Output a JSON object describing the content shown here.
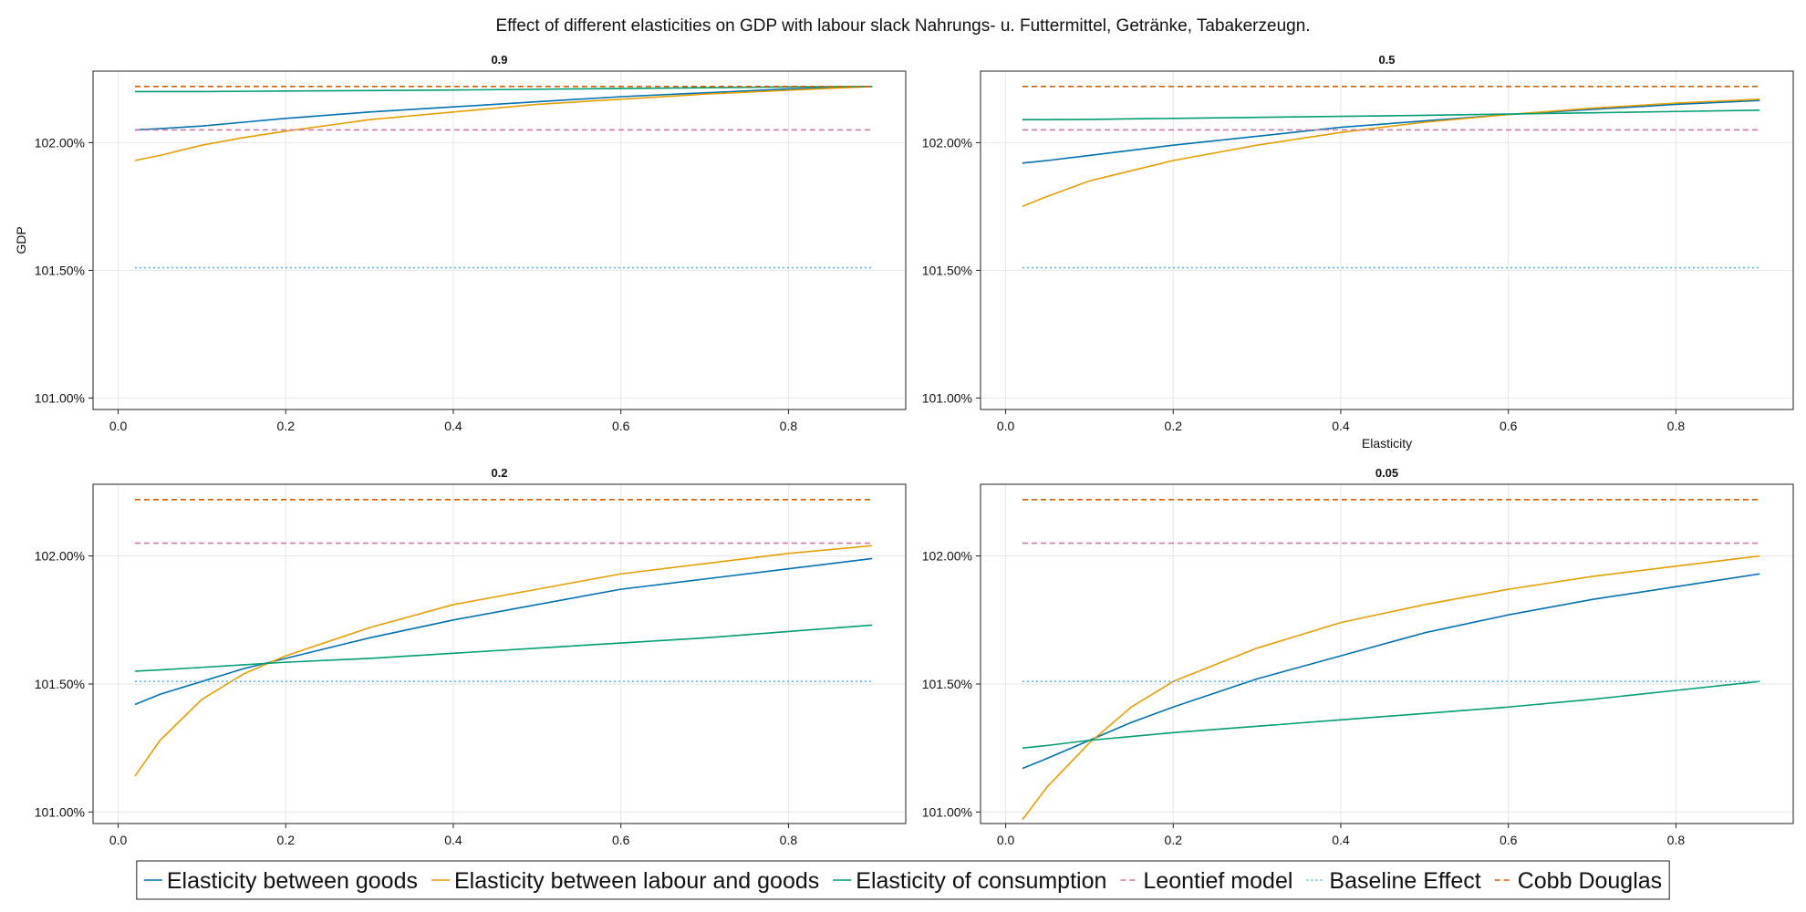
{
  "chart_data": {
    "type": "line",
    "title": "Effect of different elasticities on GDP with labour slack Nahrungs- u. Futtermittel, Getränke, Tabakerzeugn.",
    "xlabel": "Elasticity",
    "ylabel": "GDP",
    "xlim": [
      -0.03,
      0.94
    ],
    "ylim": [
      100.955,
      102.28
    ],
    "x_ticks": [
      0.0,
      0.2,
      0.4,
      0.6,
      0.8
    ],
    "x_tick_labels": [
      "0.0",
      "0.2",
      "0.4",
      "0.6",
      "0.8"
    ],
    "y_ticks": [
      101.0,
      101.5,
      102.0
    ],
    "y_tick_labels": [
      "101.00%",
      "101.50%",
      "102.00%"
    ],
    "grid": true,
    "legend_position": "bottom",
    "x": [
      0.02,
      0.05,
      0.1,
      0.15,
      0.2,
      0.3,
      0.4,
      0.5,
      0.6,
      0.7,
      0.8,
      0.9
    ],
    "series_styles": [
      {
        "name": "Elasticity between goods",
        "color": "#0072b2",
        "dash": "solid"
      },
      {
        "name": "Elasticity between labour and goods",
        "color": "#e69f00",
        "dash": "solid"
      },
      {
        "name": "Elasticity of consumption",
        "color": "#009e73",
        "dash": "solid"
      },
      {
        "name": "Leontief model",
        "color": "#cc79a7",
        "dash": "dashed"
      },
      {
        "name": "Baseline Effect",
        "color": "#56b4e9",
        "dash": "dotted"
      },
      {
        "name": "Cobb Douglas",
        "color": "#d55e00",
        "dash": "dashed"
      }
    ],
    "panels": [
      {
        "title": "0.9",
        "series": [
          {
            "name": "Elasticity between goods",
            "values": [
              102.05,
              102.055,
              102.065,
              102.08,
              102.095,
              102.12,
              102.14,
              102.16,
              102.18,
              102.195,
              102.21,
              102.22
            ]
          },
          {
            "name": "Elasticity between labour and goods",
            "values": [
              101.93,
              101.95,
              101.99,
              102.02,
              102.045,
              102.09,
              102.12,
              102.15,
              102.17,
              102.19,
              102.205,
              102.22
            ]
          },
          {
            "name": "Elasticity of consumption",
            "values": [
              102.2,
              102.2,
              102.2,
              102.201,
              102.202,
              102.204,
              102.206,
              102.209,
              102.212,
              102.215,
              102.218,
              102.22
            ]
          },
          {
            "name": "Leontief model",
            "values": [
              102.05,
              102.05,
              102.05,
              102.05,
              102.05,
              102.05,
              102.05,
              102.05,
              102.05,
              102.05,
              102.05,
              102.05
            ]
          },
          {
            "name": "Baseline Effect",
            "values": [
              101.51,
              101.51,
              101.51,
              101.51,
              101.51,
              101.51,
              101.51,
              101.51,
              101.51,
              101.51,
              101.51,
              101.51
            ]
          },
          {
            "name": "Cobb Douglas",
            "values": [
              102.22,
              102.22,
              102.22,
              102.22,
              102.22,
              102.22,
              102.22,
              102.22,
              102.22,
              102.22,
              102.22,
              102.22
            ]
          }
        ]
      },
      {
        "title": "0.5",
        "series": [
          {
            "name": "Elasticity between goods",
            "values": [
              101.92,
              101.93,
              101.95,
              101.97,
              101.99,
              102.025,
              102.06,
              102.085,
              102.11,
              102.13,
              102.15,
              102.165
            ]
          },
          {
            "name": "Elasticity between labour and goods",
            "values": [
              101.75,
              101.79,
              101.85,
              101.89,
              101.93,
              101.99,
              102.04,
              102.08,
              102.11,
              102.135,
              102.155,
              102.17
            ]
          },
          {
            "name": "Elasticity of consumption",
            "values": [
              102.09,
              102.09,
              102.091,
              102.093,
              102.095,
              102.099,
              102.103,
              102.107,
              102.112,
              102.117,
              102.122,
              102.127
            ]
          },
          {
            "name": "Leontief model",
            "values": [
              102.05,
              102.05,
              102.05,
              102.05,
              102.05,
              102.05,
              102.05,
              102.05,
              102.05,
              102.05,
              102.05,
              102.05
            ]
          },
          {
            "name": "Baseline Effect",
            "values": [
              101.51,
              101.51,
              101.51,
              101.51,
              101.51,
              101.51,
              101.51,
              101.51,
              101.51,
              101.51,
              101.51,
              101.51
            ]
          },
          {
            "name": "Cobb Douglas",
            "values": [
              102.22,
              102.22,
              102.22,
              102.22,
              102.22,
              102.22,
              102.22,
              102.22,
              102.22,
              102.22,
              102.22,
              102.22
            ]
          }
        ]
      },
      {
        "title": "0.2",
        "series": [
          {
            "name": "Elasticity between goods",
            "values": [
              101.42,
              101.46,
              101.51,
              101.56,
              101.6,
              101.68,
              101.75,
              101.81,
              101.87,
              101.91,
              101.95,
              101.99
            ]
          },
          {
            "name": "Elasticity between labour and goods",
            "values": [
              101.14,
              101.28,
              101.44,
              101.54,
              101.61,
              101.72,
              101.81,
              101.87,
              101.93,
              101.97,
              102.01,
              102.04
            ]
          },
          {
            "name": "Elasticity of consumption",
            "values": [
              101.55,
              101.555,
              101.565,
              101.575,
              101.585,
              101.6,
              101.62,
              101.64,
              101.66,
              101.68,
              101.705,
              101.73
            ]
          },
          {
            "name": "Leontief model",
            "values": [
              102.05,
              102.05,
              102.05,
              102.05,
              102.05,
              102.05,
              102.05,
              102.05,
              102.05,
              102.05,
              102.05,
              102.05
            ]
          },
          {
            "name": "Baseline Effect",
            "values": [
              101.51,
              101.51,
              101.51,
              101.51,
              101.51,
              101.51,
              101.51,
              101.51,
              101.51,
              101.51,
              101.51,
              101.51
            ]
          },
          {
            "name": "Cobb Douglas",
            "values": [
              102.22,
              102.22,
              102.22,
              102.22,
              102.22,
              102.22,
              102.22,
              102.22,
              102.22,
              102.22,
              102.22,
              102.22
            ]
          }
        ]
      },
      {
        "title": "0.05",
        "series": [
          {
            "name": "Elasticity between goods",
            "values": [
              101.17,
              101.21,
              101.28,
              101.35,
              101.41,
              101.52,
              101.61,
              101.7,
              101.77,
              101.83,
              101.88,
              101.93
            ]
          },
          {
            "name": "Elasticity between labour and goods",
            "values": [
              100.97,
              101.1,
              101.27,
              101.41,
              101.51,
              101.64,
              101.74,
              101.81,
              101.87,
              101.92,
              101.96,
              102.0
            ]
          },
          {
            "name": "Elasticity of consumption",
            "values": [
              101.25,
              101.26,
              101.28,
              101.295,
              101.31,
              101.335,
              101.36,
              101.385,
              101.41,
              101.44,
              101.475,
              101.51
            ]
          },
          {
            "name": "Leontief model",
            "values": [
              102.05,
              102.05,
              102.05,
              102.05,
              102.05,
              102.05,
              102.05,
              102.05,
              102.05,
              102.05,
              102.05,
              102.05
            ]
          },
          {
            "name": "Baseline Effect",
            "values": [
              101.51,
              101.51,
              101.51,
              101.51,
              101.51,
              101.51,
              101.51,
              101.51,
              101.51,
              101.51,
              101.51,
              101.51
            ]
          },
          {
            "name": "Cobb Douglas",
            "values": [
              102.22,
              102.22,
              102.22,
              102.22,
              102.22,
              102.22,
              102.22,
              102.22,
              102.22,
              102.22,
              102.22,
              102.22
            ]
          }
        ]
      }
    ]
  }
}
